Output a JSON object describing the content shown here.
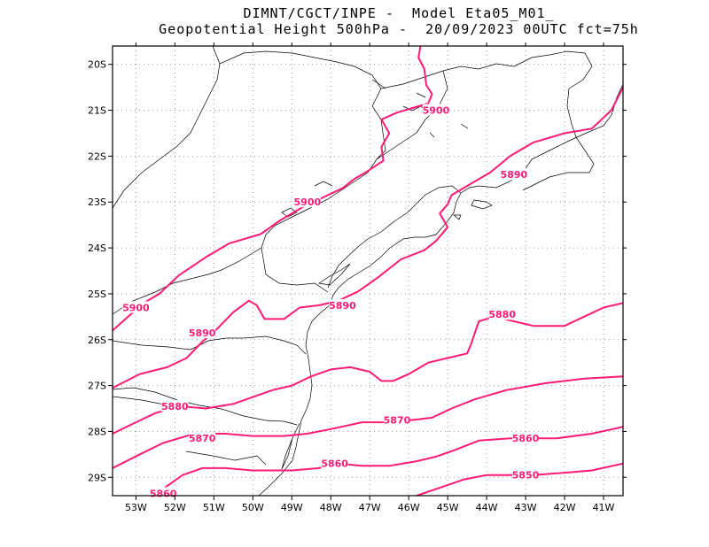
{
  "header": {
    "line1": "DIMNT/CGCT/INPE -  Model Eta05_M01_",
    "line2": "Geopotential Height 500hPa -  20/09/2023 00UTC fct=75h"
  },
  "colors": {
    "contour": "#ff1a75",
    "border": "#000000",
    "grid": "#999999"
  },
  "axes": {
    "lon_range": [
      -53.6,
      -40.5
    ],
    "lat_range": [
      -29.4,
      -19.6
    ],
    "x_ticks": [
      {
        "lon": -53,
        "label": "53W"
      },
      {
        "lon": -52,
        "label": "52W"
      },
      {
        "lon": -51,
        "label": "51W"
      },
      {
        "lon": -50,
        "label": "50W"
      },
      {
        "lon": -49,
        "label": "49W"
      },
      {
        "lon": -48,
        "label": "48W"
      },
      {
        "lon": -47,
        "label": "47W"
      },
      {
        "lon": -46,
        "label": "46W"
      },
      {
        "lon": -45,
        "label": "45W"
      },
      {
        "lon": -44,
        "label": "44W"
      },
      {
        "lon": -43,
        "label": "43W"
      },
      {
        "lon": -42,
        "label": "42W"
      },
      {
        "lon": -41,
        "label": "41W"
      }
    ],
    "y_ticks": [
      {
        "lat": -20,
        "label": "20S"
      },
      {
        "lat": -21,
        "label": "21S"
      },
      {
        "lat": -22,
        "label": "22S"
      },
      {
        "lat": -23,
        "label": "23S"
      },
      {
        "lat": -24,
        "label": "24S"
      },
      {
        "lat": -25,
        "label": "25S"
      },
      {
        "lat": -26,
        "label": "26S"
      },
      {
        "lat": -27,
        "label": "27S"
      },
      {
        "lat": -28,
        "label": "28S"
      },
      {
        "lat": -29,
        "label": "29S"
      }
    ]
  },
  "contours": [
    {
      "value": 5900,
      "labels": [
        {
          "text": "5900",
          "lon": -45.3,
          "lat": -21.0
        },
        {
          "text": "5900",
          "lon": -48.6,
          "lat": -23.0
        },
        {
          "text": "5900",
          "lon": -53.0,
          "lat": -25.3
        }
      ],
      "points": [
        [
          -45.7,
          -19.6
        ],
        [
          -45.75,
          -19.85
        ],
        [
          -45.6,
          -20.1
        ],
        [
          -45.55,
          -20.45
        ],
        [
          -45.4,
          -20.65
        ],
        [
          -45.5,
          -20.85
        ],
        [
          -45.9,
          -20.95
        ],
        [
          -46.3,
          -21.05
        ],
        [
          -46.7,
          -21.2
        ],
        [
          -46.5,
          -21.5
        ],
        [
          -46.7,
          -21.8
        ],
        [
          -46.65,
          -22.1
        ],
        [
          -47.1,
          -22.35
        ],
        [
          -47.4,
          -22.5
        ],
        [
          -47.7,
          -22.7
        ],
        [
          -48.2,
          -22.9
        ],
        [
          -48.7,
          -23.1
        ],
        [
          -49.3,
          -23.4
        ],
        [
          -49.8,
          -23.7
        ],
        [
          -50.6,
          -23.9
        ],
        [
          -51.2,
          -24.2
        ],
        [
          -51.9,
          -24.6
        ],
        [
          -52.4,
          -25.0
        ],
        [
          -52.8,
          -25.2
        ],
        [
          -53.2,
          -25.5
        ],
        [
          -53.6,
          -25.8
        ]
      ]
    },
    {
      "value": 5890,
      "labels": [
        {
          "text": "5890",
          "lon": -43.3,
          "lat": -22.4
        },
        {
          "text": "5890",
          "lon": -47.7,
          "lat": -25.25
        },
        {
          "text": "5890",
          "lon": -51.3,
          "lat": -25.85
        }
      ],
      "points": [
        [
          -40.5,
          -20.5
        ],
        [
          -40.8,
          -21.0
        ],
        [
          -41.3,
          -21.4
        ],
        [
          -42.0,
          -21.5
        ],
        [
          -42.8,
          -21.7
        ],
        [
          -43.4,
          -22.0
        ],
        [
          -43.9,
          -22.35
        ],
        [
          -44.4,
          -22.6
        ],
        [
          -44.9,
          -22.85
        ],
        [
          -45.0,
          -23.05
        ],
        [
          -45.2,
          -23.25
        ],
        [
          -45.0,
          -23.55
        ],
        [
          -45.3,
          -23.85
        ],
        [
          -45.6,
          -24.05
        ],
        [
          -46.2,
          -24.25
        ],
        [
          -46.8,
          -24.65
        ],
        [
          -47.3,
          -24.95
        ],
        [
          -47.8,
          -25.15
        ],
        [
          -48.3,
          -25.25
        ],
        [
          -48.8,
          -25.3
        ],
        [
          -49.2,
          -25.55
        ],
        [
          -49.4,
          -25.55
        ],
        [
          -49.7,
          -25.55
        ],
        [
          -49.9,
          -25.25
        ],
        [
          -50.1,
          -25.15
        ],
        [
          -50.5,
          -25.4
        ],
        [
          -50.9,
          -25.75
        ],
        [
          -51.3,
          -26.05
        ],
        [
          -51.7,
          -26.4
        ],
        [
          -52.2,
          -26.6
        ],
        [
          -52.9,
          -26.75
        ],
        [
          -53.6,
          -27.05
        ]
      ]
    },
    {
      "value": 5880,
      "labels": [
        {
          "text": "5880",
          "lon": -43.6,
          "lat": -25.45
        },
        {
          "text": "5880",
          "lon": -52.0,
          "lat": -27.45
        }
      ],
      "points": [
        [
          -40.5,
          -25.2
        ],
        [
          -41.0,
          -25.3
        ],
        [
          -41.5,
          -25.5
        ],
        [
          -42.0,
          -25.7
        ],
        [
          -42.8,
          -25.7
        ],
        [
          -43.3,
          -25.6
        ],
        [
          -43.8,
          -25.5
        ],
        [
          -44.2,
          -25.6
        ],
        [
          -44.4,
          -26.1
        ],
        [
          -44.5,
          -26.3
        ],
        [
          -45.0,
          -26.4
        ],
        [
          -45.5,
          -26.5
        ],
        [
          -46.0,
          -26.75
        ],
        [
          -46.4,
          -26.9
        ],
        [
          -46.7,
          -26.9
        ],
        [
          -47.0,
          -26.7
        ],
        [
          -47.5,
          -26.6
        ],
        [
          -48.0,
          -26.65
        ],
        [
          -48.5,
          -26.8
        ],
        [
          -49.0,
          -27.0
        ],
        [
          -49.5,
          -27.1
        ],
        [
          -50.0,
          -27.25
        ],
        [
          -50.5,
          -27.4
        ],
        [
          -51.2,
          -27.5
        ],
        [
          -51.9,
          -27.45
        ],
        [
          -52.5,
          -27.6
        ],
        [
          -53.0,
          -27.8
        ],
        [
          -53.6,
          -28.05
        ]
      ]
    },
    {
      "value": 5870,
      "labels": [
        {
          "text": "5870",
          "lon": -46.3,
          "lat": -27.75
        },
        {
          "text": "5870",
          "lon": -51.3,
          "lat": -28.15
        }
      ],
      "points": [
        [
          -40.5,
          -26.8
        ],
        [
          -41.5,
          -26.85
        ],
        [
          -42.5,
          -26.95
        ],
        [
          -43.5,
          -27.1
        ],
        [
          -44.3,
          -27.3
        ],
        [
          -44.9,
          -27.5
        ],
        [
          -45.4,
          -27.7
        ],
        [
          -45.9,
          -27.75
        ],
        [
          -46.6,
          -27.8
        ],
        [
          -47.2,
          -27.8
        ],
        [
          -48.0,
          -27.95
        ],
        [
          -48.6,
          -28.05
        ],
        [
          -49.2,
          -28.1
        ],
        [
          -50.0,
          -28.1
        ],
        [
          -50.7,
          -28.05
        ],
        [
          -51.5,
          -28.05
        ],
        [
          -52.3,
          -28.25
        ],
        [
          -52.9,
          -28.5
        ],
        [
          -53.6,
          -28.8
        ]
      ]
    },
    {
      "value": 5860,
      "labels": [
        {
          "text": "5860",
          "lon": -43.0,
          "lat": -28.15
        },
        {
          "text": "5860",
          "lon": -47.9,
          "lat": -28.7
        },
        {
          "text": "5860",
          "lon": -52.3,
          "lat": -29.35
        }
      ],
      "points": [
        [
          -40.5,
          -27.9
        ],
        [
          -41.3,
          -28.05
        ],
        [
          -42.2,
          -28.15
        ],
        [
          -43.4,
          -28.15
        ],
        [
          -44.2,
          -28.2
        ],
        [
          -44.8,
          -28.4
        ],
        [
          -45.3,
          -28.55
        ],
        [
          -45.8,
          -28.65
        ],
        [
          -46.5,
          -28.75
        ],
        [
          -47.2,
          -28.75
        ],
        [
          -47.8,
          -28.7
        ],
        [
          -48.3,
          -28.8
        ],
        [
          -49.0,
          -28.85
        ],
        [
          -50.0,
          -28.85
        ],
        [
          -50.7,
          -28.8
        ],
        [
          -51.3,
          -28.8
        ],
        [
          -51.8,
          -28.95
        ],
        [
          -52.3,
          -29.25
        ],
        [
          -52.6,
          -29.4
        ]
      ]
    },
    {
      "value": 5850,
      "labels": [
        {
          "text": "5850",
          "lon": -43.0,
          "lat": -28.95
        }
      ],
      "points": [
        [
          -40.5,
          -28.7
        ],
        [
          -41.3,
          -28.85
        ],
        [
          -42.0,
          -28.9
        ],
        [
          -42.8,
          -28.95
        ],
        [
          -43.5,
          -28.95
        ],
        [
          -44.0,
          -28.95
        ],
        [
          -44.6,
          -29.05
        ],
        [
          -45.1,
          -29.2
        ],
        [
          -45.8,
          -29.4
        ]
      ]
    }
  ]
}
